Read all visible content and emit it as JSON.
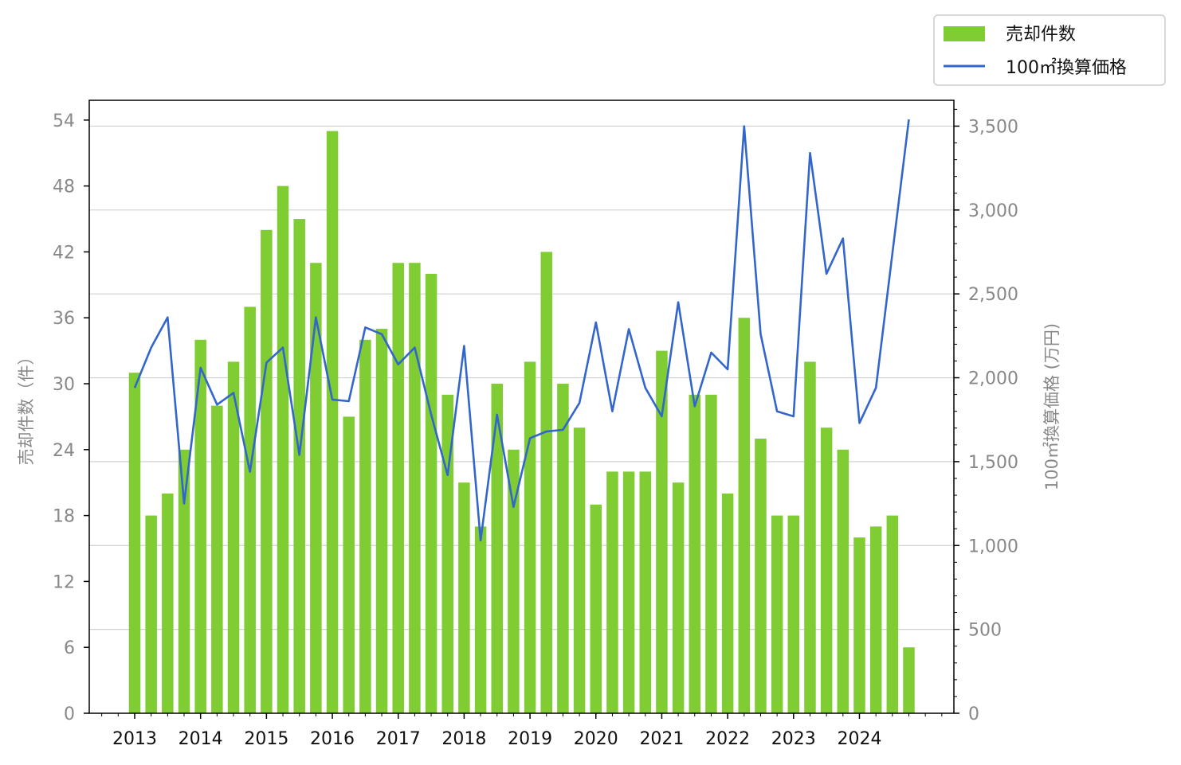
{
  "chart_data": {
    "type": "bar+line",
    "colors": {
      "bars": "#7fcc33",
      "line": "#3366cc",
      "grid": "#d0d0d0",
      "tick_text": "#888888"
    },
    "legend": {
      "placement": "top-right",
      "entries": [
        "売却件数",
        "100㎡換算価格"
      ]
    },
    "ylabel_left": "売却件数（件）",
    "ylabel_right": "100㎡換算価格 (万円)",
    "xlabel": "",
    "grid": true,
    "y_left": {
      "min": 0,
      "max": 55.8,
      "ticks": [
        "0",
        "6",
        "12",
        "18",
        "24",
        "30",
        "36",
        "42",
        "48",
        "54"
      ]
    },
    "y_right": {
      "min": 0,
      "max": 3654,
      "ticks": [
        "0",
        "500",
        "1,000",
        "1,500",
        "2,000",
        "2,500",
        "3,000",
        "3,500"
      ]
    },
    "x_tick_labels": [
      "2013",
      "2014",
      "2015",
      "2016",
      "2017",
      "2018",
      "2019",
      "2020",
      "2021",
      "2022",
      "2023",
      "2024"
    ],
    "periods_per_year": 4,
    "series": [
      {
        "name": "売却件数",
        "kind": "bar",
        "axis": "left",
        "values": [
          31,
          18,
          20,
          24,
          34,
          28,
          32,
          37,
          44,
          48,
          45,
          41,
          53,
          27,
          34,
          35,
          41,
          41,
          40,
          29,
          21,
          17,
          30,
          24,
          32,
          42,
          30,
          26,
          19,
          22,
          22,
          22,
          33,
          21,
          29,
          29,
          20,
          36,
          25,
          18,
          18,
          32,
          26,
          24,
          16,
          17,
          18,
          6
        ]
      },
      {
        "name": "100㎡換算価格",
        "kind": "line",
        "axis": "right",
        "values": [
          1940,
          2180,
          2360,
          1250,
          2060,
          1840,
          1910,
          1440,
          2090,
          2180,
          1540,
          2360,
          1870,
          1860,
          2300,
          2260,
          2080,
          2180,
          1780,
          1420,
          2190,
          1030,
          1780,
          1230,
          1640,
          1680,
          1690,
          1850,
          2330,
          1800,
          2290,
          1940,
          1770,
          2450,
          1830,
          2150,
          2050,
          3500,
          2260,
          1800,
          1770,
          3340,
          2620,
          2830,
          1730,
          1940,
          2740,
          3540
        ]
      }
    ]
  }
}
